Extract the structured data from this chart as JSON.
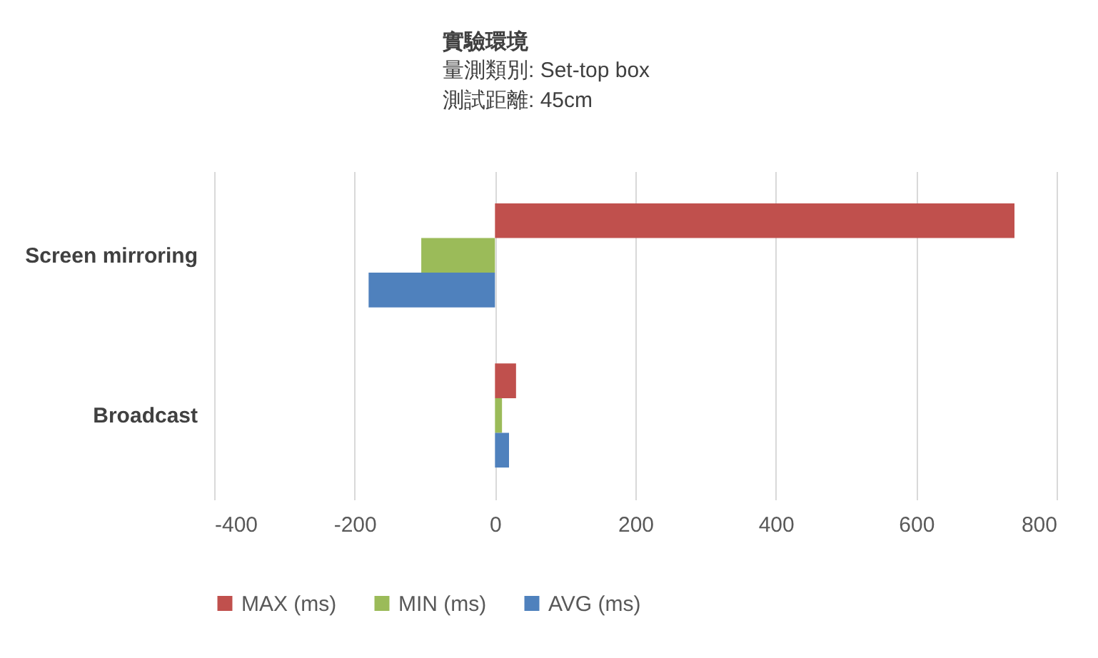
{
  "chart_data": {
    "type": "bar",
    "orientation": "horizontal",
    "title": "實驗環境",
    "annotations": [
      "量測類別: Set-top box",
      "測試距離: 45cm"
    ],
    "categories": [
      "Screen mirroring",
      "Broadcast"
    ],
    "series": [
      {
        "name": "MAX (ms)",
        "color": "#c0504d",
        "values": [
          740,
          30
        ]
      },
      {
        "name": "MIN (ms)",
        "color": "#9bbb59",
        "values": [
          -105,
          10
        ]
      },
      {
        "name": "AVG (ms)",
        "color": "#4f81bd",
        "values": [
          -180,
          20
        ]
      }
    ],
    "xlim": [
      -400,
      800
    ],
    "xticks": [
      -400,
      -200,
      0,
      200,
      400,
      600,
      800
    ],
    "grid": "x",
    "legend": "bottom"
  }
}
